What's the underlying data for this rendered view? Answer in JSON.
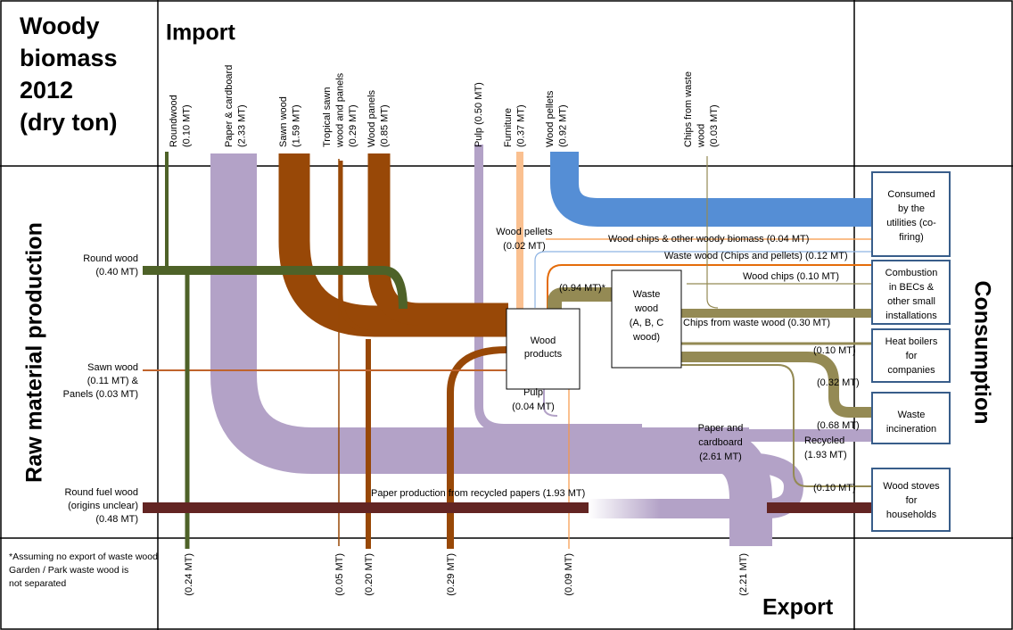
{
  "title": [
    "Woody",
    "biomass",
    "2012",
    "(dry ton)"
  ],
  "sections": {
    "import": "Import",
    "production": "Raw material production",
    "consumption": "Consumption",
    "export": "Export"
  },
  "imports": [
    [
      "Roundwood",
      "(0.10 MT)"
    ],
    [
      "Paper & cardboard",
      "(2.33 MT)"
    ],
    [
      "Sawn wood",
      "(1.59 MT)"
    ],
    [
      "Tropical sawn",
      "wood and panels",
      "(0.29 MT)"
    ],
    [
      "Wood panels",
      "(0.85 MT)"
    ],
    [
      "Pulp (0.50 MT)"
    ],
    [
      "Furniture",
      "(0.37 MT)"
    ],
    [
      "Wood pellets",
      "(0.92 MT)"
    ],
    [
      "Chips from waste",
      "wood",
      "(0.03 MT)"
    ]
  ],
  "production": [
    [
      "Round wood",
      "(0.40 MT)"
    ],
    [
      "Sawn wood",
      "(0.11 MT) &",
      "Panels (0.03 MT)"
    ],
    [
      "Round fuel wood",
      "(origins unclear)",
      "(0.48 MT)"
    ]
  ],
  "nodes": [
    [
      "Wood",
      "products"
    ],
    [
      "Waste",
      "wood",
      "(A, B, C",
      "wood)"
    ]
  ],
  "consumers": [
    [
      "Consumed",
      "by the",
      "utilities (co-",
      "firing)"
    ],
    [
      "Combustion",
      "in BECs &",
      "other small",
      "installations"
    ],
    [
      "Heat boilers",
      "for",
      "companies"
    ],
    [
      "Waste",
      "incineration"
    ],
    [
      "Wood stoves",
      "for",
      "households"
    ]
  ],
  "flow_labels": [
    [
      "Wood pellets",
      "(0.02 MT)"
    ],
    [
      "Wood chips & other woody biomass (0.04 MT)"
    ],
    [
      "Waste wood  (Chips and pellets) (0.12 MT)"
    ],
    [
      "Wood chips (0.10 MT)"
    ],
    [
      "(0.94 MT)*"
    ],
    [
      "Chips from waste wood (0.30 MT)"
    ],
    [
      "(0.10 MT)"
    ],
    [
      "(0.32 MT)"
    ],
    [
      "(0.68 MT)"
    ],
    [
      "Recycled",
      "(1.93 MT)"
    ],
    [
      "(0.10 MT)"
    ],
    [
      "Pulp",
      "(0.04 MT)"
    ],
    [
      "Paper and",
      "cardboard",
      "(2.61 MT)"
    ],
    [
      "Paper production from recycled papers (1.93 MT)"
    ]
  ],
  "exports": [
    "(0.24 MT)",
    "(0.05 MT)",
    "(0.20 MT)",
    "(0.29 MT)",
    "(0.09 MT)",
    "(2.21 MT)"
  ],
  "footnote": [
    "*Assuming no export of waste wood",
    "Garden / Park waste wood is",
    "not separated"
  ]
}
